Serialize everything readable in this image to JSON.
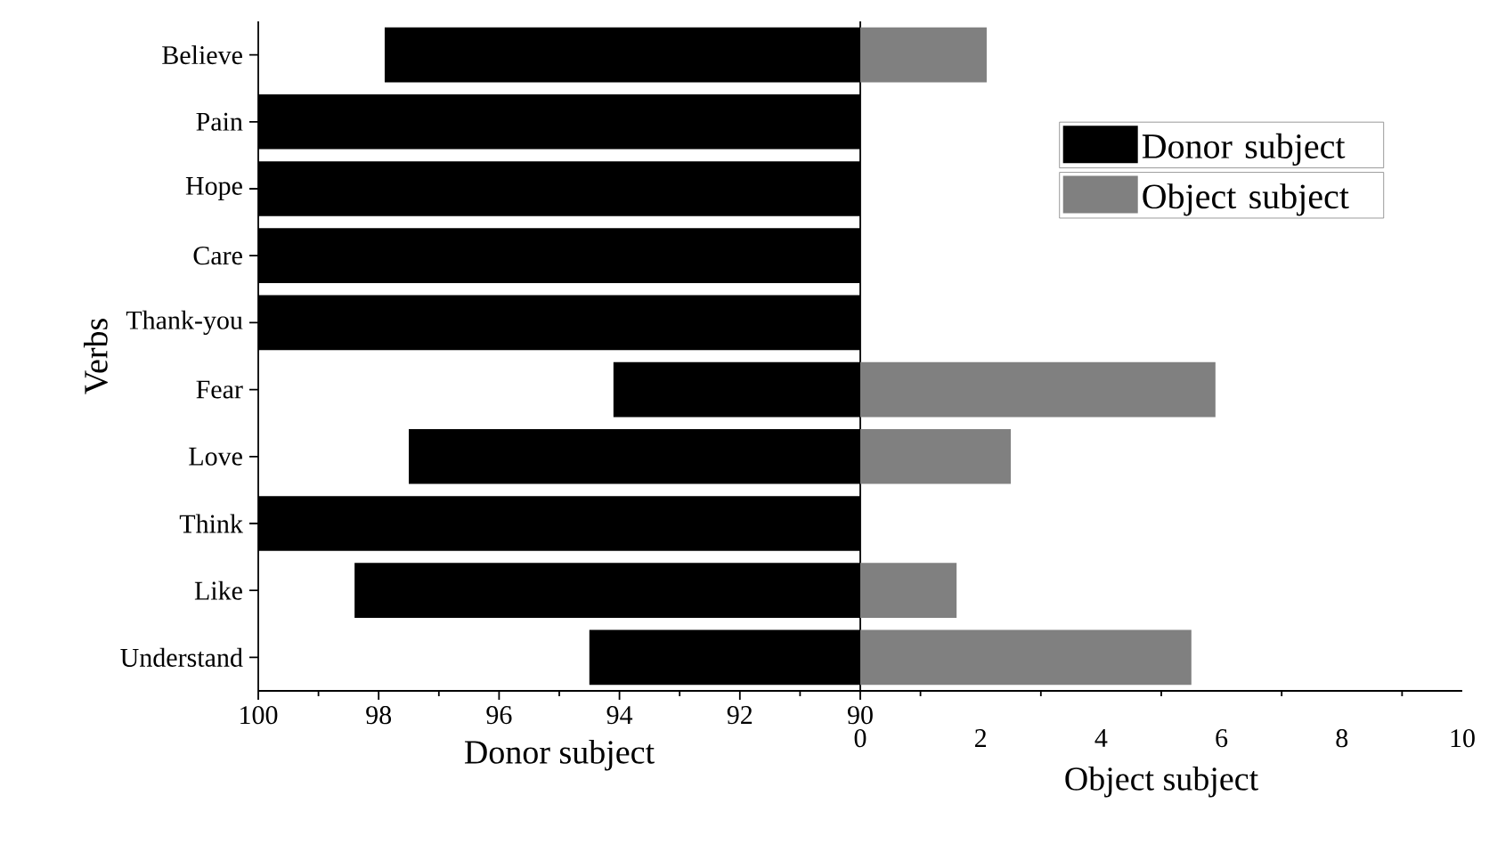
{
  "chart_data": [
    {
      "type": "bar",
      "orientation": "horizontal",
      "ylabel": "Verbs",
      "xlabel": "Donor subject",
      "categories": [
        "Believe",
        "Pain",
        "Hope",
        "Care",
        "Thank-you",
        "Fear",
        "Love",
        "Think",
        "Like",
        "Understand"
      ],
      "xlim": [
        100,
        90
      ],
      "xticks": [
        100,
        98,
        96,
        94,
        92,
        90
      ],
      "legend": "right",
      "series": [
        {
          "name": "Donor subject",
          "color": "#000000",
          "values": [
            97.9,
            100,
            100,
            100,
            100,
            94.1,
            97.5,
            100,
            98.4,
            94.5
          ]
        }
      ]
    },
    {
      "type": "bar",
      "orientation": "horizontal",
      "xlabel": "Object subject",
      "categories": [
        null,
        null,
        null,
        null,
        null,
        null,
        null,
        null,
        null,
        null
      ],
      "tick_labels": "x",
      "xlim": [
        0,
        10
      ],
      "xticks": [
        0,
        2,
        4,
        6,
        8,
        10
      ],
      "legend": "top right",
      "series": [
        {
          "name": "Object subject",
          "color": "#808080",
          "values": [
            2.1,
            0,
            0,
            0,
            0,
            5.9,
            2.5,
            0,
            1.6,
            5.5
          ]
        }
      ]
    }
  ]
}
